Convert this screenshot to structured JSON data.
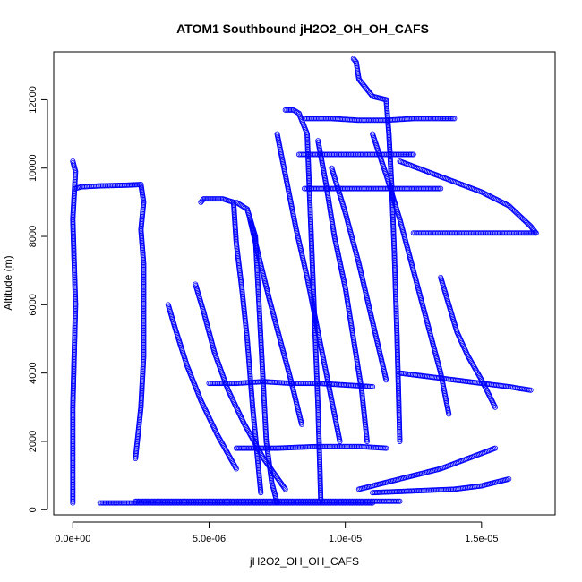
{
  "chart_data": {
    "type": "scatter",
    "title": "ATOM1 Southbound jH2O2_OH_OH_CAFS",
    "xlabel": "jH2O2_OH_OH_CAFS",
    "ylabel": "Altitude (m)",
    "xlim": [
      -7e-07,
      1.77e-05
    ],
    "ylim": [
      -150,
      13400
    ],
    "x_ticks": [
      0,
      5e-06,
      1e-05,
      1.5e-05
    ],
    "x_tick_labels": [
      "0.0e+00",
      "5.0e-06",
      "1.0e-05",
      "1.5e-05"
    ],
    "y_ticks": [
      0,
      2000,
      4000,
      6000,
      8000,
      10000,
      12000
    ],
    "y_tick_labels": [
      "0",
      "2000",
      "4000",
      "6000",
      "8000",
      "10000",
      "12000"
    ],
    "grid": false,
    "legend": "none",
    "marker": "open-circle",
    "color": "#0000ff",
    "series": [
      {
        "x": [
          0.0,
          0.0,
          1e-07,
          0.0,
          1e-07,
          0.0
        ],
        "y": [
          200,
          3000,
          6000,
          8500,
          9900,
          10200
        ]
      },
      {
        "x": [
          1e-07,
          3e-07,
          1e-06,
          2e-06,
          2.5e-06,
          2.6e-06,
          2.5e-06,
          2.6e-06,
          2.6e-06,
          2.6e-06,
          2.5e-06,
          2.3e-06
        ],
        "y": [
          9400,
          9450,
          9480,
          9500,
          9520,
          9000,
          8200,
          7200,
          6000,
          4500,
          3000,
          1500
        ]
      },
      {
        "x": [
          4.7e-06,
          4.8e-06,
          5e-06,
          5.5e-06,
          5.9e-06,
          6e-06,
          6.2e-06,
          6.4e-06,
          6.6e-06,
          6.9e-06
        ],
        "y": [
          9000,
          9100,
          9100,
          9100,
          9000,
          7800,
          6500,
          5000,
          3000,
          500
        ]
      },
      {
        "x": [
          6e-06,
          6.4e-06,
          6.7e-06,
          6.8e-06,
          6.9e-06,
          7e-06,
          7.1e-06,
          7.3e-06,
          7.5e-06
        ],
        "y": [
          9000,
          8800,
          8000,
          6500,
          5000,
          3500,
          2000,
          800,
          200
        ]
      },
      {
        "x": [
          7.8e-06,
          8.1e-06,
          8.3e-06,
          8.6e-06,
          8.7e-06,
          8.8e-06,
          8.9e-06,
          9e-06,
          9.1e-06
        ],
        "y": [
          11700,
          11700,
          11600,
          11000,
          9000,
          7000,
          5000,
          3000,
          300
        ]
      },
      {
        "x": [
          1.03e-05,
          1.04e-05,
          1.05e-05,
          1.1e-05,
          1.15e-05,
          1.16e-05,
          1.17e-05,
          1.18e-05,
          1.19e-05,
          1.2e-05
        ],
        "y": [
          13200,
          13100,
          12600,
          12100,
          12000,
          11000,
          9500,
          7500,
          5000,
          2000
        ]
      },
      {
        "x": [
          8.5e-06,
          9.5e-06,
          1.05e-05,
          1.15e-05,
          1.25e-05,
          1.35e-05,
          1.4e-05
        ],
        "y": [
          11450,
          11450,
          11400,
          11400,
          11450,
          11450,
          11450
        ]
      },
      {
        "x": [
          8.3e-06,
          9e-06,
          1e-05,
          1.1e-05,
          1.2e-05,
          1.25e-05
        ],
        "y": [
          10400,
          10400,
          10400,
          10400,
          10400,
          10400
        ]
      },
      {
        "x": [
          8.5e-06,
          9.5e-06,
          1.05e-05,
          1.15e-05,
          1.25e-05,
          1.35e-05
        ],
        "y": [
          9400,
          9400,
          9400,
          9400,
          9400,
          9400
        ]
      },
      {
        "x": [
          1.2e-05,
          1.3e-05,
          1.4e-05,
          1.5e-05,
          1.6e-05,
          1.68e-05,
          1.7e-05
        ],
        "y": [
          10200,
          9900,
          9600,
          9300,
          8900,
          8300,
          8100
        ]
      },
      {
        "x": [
          1.25e-05,
          1.35e-05,
          1.45e-05,
          1.55e-05,
          1.65e-05,
          1.7e-05
        ],
        "y": [
          8100,
          8100,
          8100,
          8100,
          8100,
          8100
        ]
      },
      {
        "x": [
          1.2e-05,
          1.3e-05,
          1.4e-05,
          1.5e-05,
          1.6e-05,
          1.68e-05
        ],
        "y": [
          4000,
          3900,
          3800,
          3700,
          3600,
          3500
        ]
      },
      {
        "x": [
          1e-06,
          1.5e-06,
          2e-06,
          3e-06,
          5e-06,
          7e-06,
          9e-06,
          1.1e-05
        ],
        "y": [
          200,
          200,
          200,
          200,
          200,
          200,
          200,
          200
        ]
      },
      {
        "x": [
          2.3e-06,
          4e-06,
          6e-06,
          8e-06,
          1e-05,
          1.2e-05
        ],
        "y": [
          250,
          250,
          250,
          250,
          250,
          250
        ]
      },
      {
        "x": [
          4.5e-06,
          4.8e-06,
          5.2e-06,
          5.7e-06,
          6.3e-06,
          7e-06,
          7.8e-06
        ],
        "y": [
          6600,
          5800,
          4600,
          3500,
          2500,
          1500,
          600
        ]
      },
      {
        "x": [
          3.5e-06,
          3.8e-06,
          4.2e-06,
          4.7e-06,
          5.3e-06,
          6e-06
        ],
        "y": [
          6000,
          5200,
          4200,
          3200,
          2200,
          1200
        ]
      },
      {
        "x": [
          9e-06,
          9.3e-06,
          9.6e-06,
          1e-05,
          1.03e-05,
          1.06e-05,
          1.08e-05
        ],
        "y": [
          10800,
          9500,
          8000,
          6500,
          5000,
          3500,
          2000
        ]
      },
      {
        "x": [
          9.5e-06,
          1e-05,
          1.05e-05,
          1.1e-05,
          1.15e-05
        ],
        "y": [
          10000,
          8700,
          7200,
          5500,
          3800
        ]
      },
      {
        "x": [
          5e-06,
          6e-06,
          7e-06,
          8e-06,
          9e-06,
          1e-05,
          1.1e-05
        ],
        "y": [
          3700,
          3700,
          3750,
          3700,
          3700,
          3650,
          3600
        ]
      },
      {
        "x": [
          6e-06,
          7.5e-06,
          9e-06,
          1.05e-05,
          1.15e-05
        ],
        "y": [
          1800,
          1800,
          1850,
          1850,
          1800
        ]
      },
      {
        "x": [
          1.05e-05,
          1.15e-05,
          1.25e-05,
          1.35e-05,
          1.45e-05,
          1.55e-05
        ],
        "y": [
          600,
          800,
          1000,
          1200,
          1500,
          1800
        ]
      },
      {
        "x": [
          1.1e-05,
          1.25e-05,
          1.4e-05,
          1.5e-05,
          1.6e-05
        ],
        "y": [
          500,
          550,
          600,
          700,
          900
        ]
      },
      {
        "x": [
          7.5e-06,
          7.8e-06,
          8.2e-06,
          8.6e-06,
          9e-06,
          9.4e-06,
          9.8e-06
        ],
        "y": [
          11000,
          9800,
          8200,
          6800,
          5200,
          3600,
          2000
        ]
      },
      {
        "x": [
          6.5e-06,
          6.8e-06,
          7.2e-06,
          7.6e-06,
          8e-06,
          8.4e-06
        ],
        "y": [
          8500,
          7500,
          6200,
          5000,
          3800,
          2500
        ]
      },
      {
        "x": [
          1.1e-05,
          1.15e-05,
          1.2e-05,
          1.25e-05,
          1.3e-05,
          1.35e-05,
          1.38e-05
        ],
        "y": [
          11000,
          9800,
          8500,
          7000,
          5500,
          4000,
          2800
        ]
      },
      {
        "x": [
          1.35e-05,
          1.38e-05,
          1.41e-05,
          1.45e-05,
          1.5e-05,
          1.55e-05
        ],
        "y": [
          6800,
          6000,
          5200,
          4500,
          3800,
          3000
        ]
      }
    ]
  }
}
